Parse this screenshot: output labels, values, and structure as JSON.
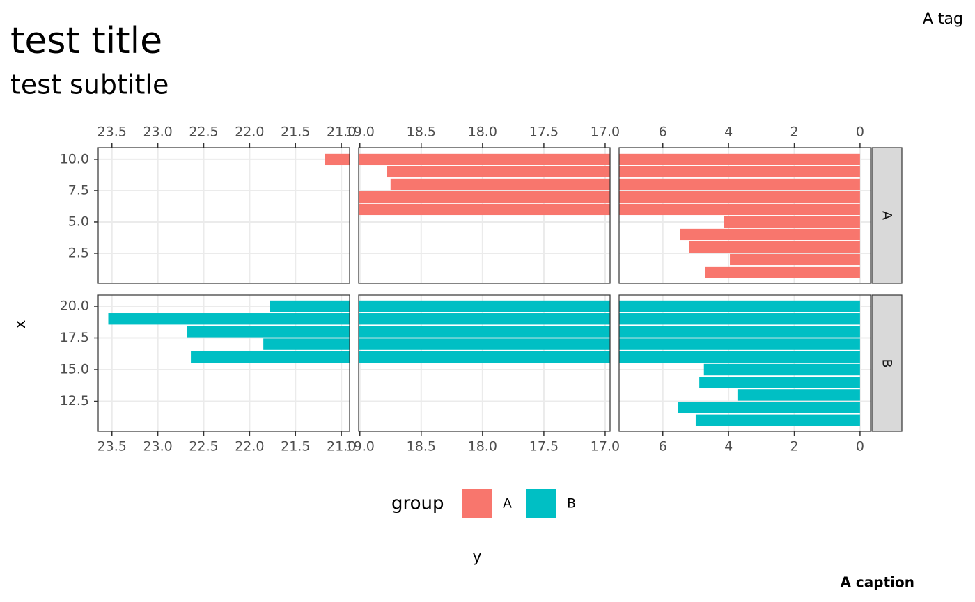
{
  "chart_data": {
    "type": "bar",
    "orientation": "horizontal",
    "title": "test title",
    "subtitle": "test subtitle",
    "tag": "A tag",
    "caption": "A caption",
    "axis_titles": {
      "vertical": "x",
      "horizontal": "y"
    },
    "legend": {
      "title": "group",
      "position": "bottom"
    },
    "grid": true,
    "series": [
      {
        "name": "A",
        "color": "#F8766D",
        "x": [
          1,
          2,
          3,
          4,
          5,
          6,
          7,
          8,
          9,
          10
        ],
        "values": [
          4.72,
          3.96,
          5.21,
          5.47,
          4.13,
          20,
          20,
          18.75,
          18.78,
          21.18
        ]
      },
      {
        "name": "B",
        "color": "#00BFC4",
        "x": [
          11,
          12,
          13,
          14,
          15,
          16,
          17,
          18,
          19,
          20
        ],
        "values": [
          5.0,
          5.55,
          3.73,
          4.89,
          4.75,
          22.64,
          21.85,
          22.68,
          23.54,
          21.78
        ]
      }
    ],
    "columns": [
      {
        "xlim": [
          23.65,
          20.91
        ],
        "xticks": [
          23.5,
          {
            "value": 23,
            "label": "23.0"
          },
          22.5,
          {
            "value": 22,
            "label": "22.0"
          },
          21.5,
          {
            "value": 21,
            "label": "21.0"
          }
        ]
      },
      {
        "xlim": [
          19.01,
          16.96
        ],
        "xticks": [
          {
            "value": 19,
            "label": "19.0"
          },
          18.5,
          {
            "value": 18,
            "label": "18.0"
          },
          17.5,
          {
            "value": 17,
            "label": "17.0"
          }
        ]
      },
      {
        "xlim": [
          7.33,
          -0.32
        ],
        "xticks": [
          6,
          4,
          2,
          0
        ]
      }
    ],
    "rows": [
      {
        "facet": "A",
        "ylim": [
          0.11,
          10.94
        ],
        "yticks": [
          {
            "value": 2.5,
            "label": "2.5"
          },
          {
            "value": 5,
            "label": "5.0"
          },
          {
            "value": 7.5,
            "label": "7.5"
          },
          {
            "value": 10,
            "label": "10.0"
          }
        ]
      },
      {
        "facet": "B",
        "ylim": [
          10.11,
          20.88
        ],
        "yticks": [
          {
            "value": 12.5,
            "label": "12.5"
          },
          {
            "value": 15,
            "label": "15.0"
          },
          {
            "value": 17.5,
            "label": "17.5"
          },
          {
            "value": 20,
            "label": "20.0"
          }
        ]
      }
    ]
  }
}
